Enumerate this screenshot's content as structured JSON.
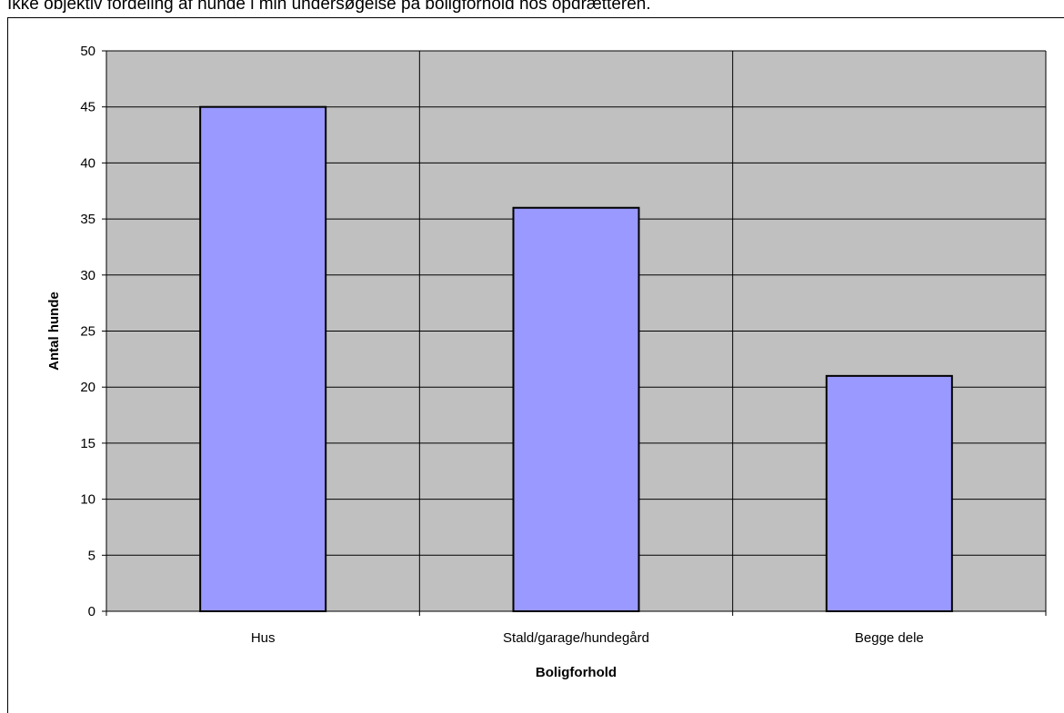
{
  "caption": "Ikke objektiv fordeling af hunde i min undersøgelse på boligforhold hos opdrætteren.",
  "chart_data": {
    "type": "bar",
    "categories": [
      "Hus",
      "Stald/garage/hundegård",
      "Begge dele"
    ],
    "values": [
      45,
      36,
      21
    ],
    "title": "",
    "xlabel": "Boligforhold",
    "ylabel": "Antal hunde",
    "ylim": [
      0,
      50
    ],
    "yticks": [
      0,
      5,
      10,
      15,
      20,
      25,
      30,
      35,
      40,
      45,
      50
    ],
    "grid": true,
    "legend": "none",
    "colors": {
      "bar_fill": "#9999ff",
      "bar_stroke": "#000000",
      "plot_background": "#c0c0c0",
      "gridline": "#000000"
    }
  }
}
